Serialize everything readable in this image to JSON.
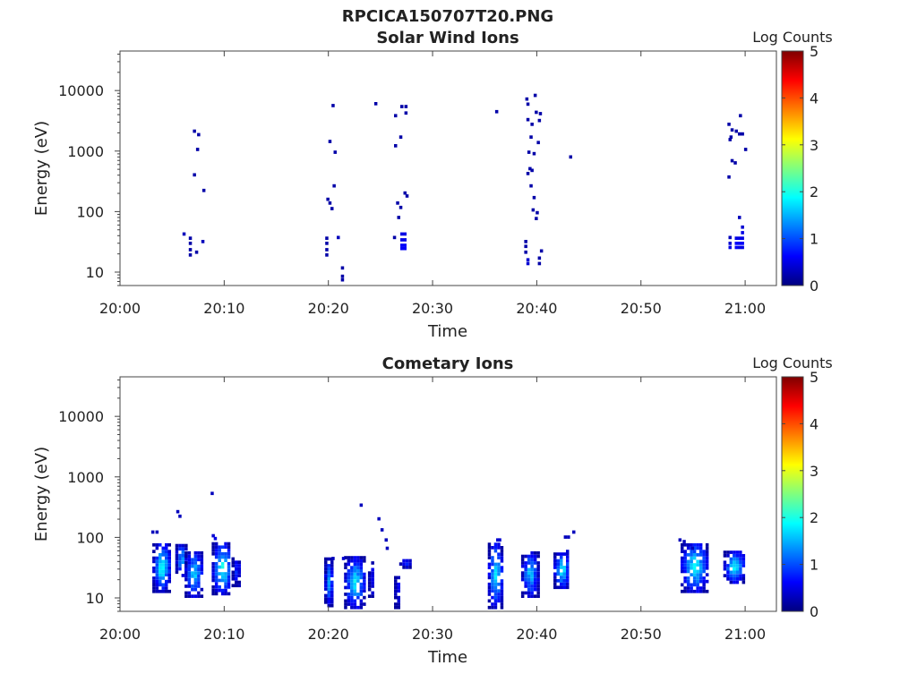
{
  "figure_title": "RPCICA150707T20.PNG",
  "colormap": [
    "#00007f",
    "#0000ff",
    "#007fff",
    "#00ffff",
    "#7fff7f",
    "#ffff00",
    "#ff7f00",
    "#ff0000",
    "#7f0000"
  ],
  "chart_data": [
    {
      "type": "heatmap",
      "title": "Solar Wind Ions",
      "xlabel": "Time",
      "ylabel": "Energy (eV)",
      "x_ticks": [
        "20:00",
        "20:10",
        "20:20",
        "20:30",
        "20:40",
        "20:50",
        "21:00"
      ],
      "y_ticks": [
        "10",
        "100",
        "1000",
        "10000"
      ],
      "y_scale": "log",
      "x_range_minutes": [
        0,
        63
      ],
      "y_range_eV": [
        6,
        45000
      ],
      "colorbar": {
        "label": "Log Counts",
        "ticks": [
          "0",
          "1",
          "2",
          "3",
          "4",
          "5"
        ],
        "range": [
          0,
          5
        ]
      },
      "points": [
        [
          6.0,
          40,
          0.3
        ],
        [
          6.6,
          34,
          0.2
        ],
        [
          6.6,
          28,
          0.2
        ],
        [
          6.6,
          22,
          0.2
        ],
        [
          6.6,
          18,
          0.2
        ],
        [
          7.2,
          20,
          0.2
        ],
        [
          7.8,
          30,
          0.3
        ],
        [
          7.0,
          2000,
          0.2
        ],
        [
          7.4,
          1750,
          0.2
        ],
        [
          7.3,
          1000,
          0.2
        ],
        [
          7.0,
          380,
          0.2
        ],
        [
          7.9,
          210,
          0.2
        ],
        [
          19.7,
          34,
          0.2
        ],
        [
          19.7,
          28,
          0.2
        ],
        [
          19.7,
          22,
          0.2
        ],
        [
          19.7,
          18,
          0.2
        ],
        [
          20.8,
          35,
          0.3
        ],
        [
          21.2,
          11,
          0.2
        ],
        [
          21.2,
          8,
          0.2
        ],
        [
          21.2,
          7,
          0.2
        ],
        [
          20.3,
          5300,
          0.2
        ],
        [
          20.0,
          1350,
          0.2
        ],
        [
          20.5,
          900,
          0.2
        ],
        [
          20.4,
          250,
          0.2
        ],
        [
          19.8,
          150,
          0.2
        ],
        [
          20.0,
          130,
          0.2
        ],
        [
          20.2,
          105,
          0.2
        ],
        [
          24.4,
          5700,
          0.2
        ],
        [
          26.3,
          3600,
          0.2
        ],
        [
          26.9,
          5100,
          0.2
        ],
        [
          27.3,
          5100,
          0.2
        ],
        [
          27.3,
          4000,
          0.2
        ],
        [
          26.8,
          1600,
          0.2
        ],
        [
          26.3,
          1150,
          0.2
        ],
        [
          27.2,
          190,
          0.2
        ],
        [
          27.4,
          170,
          0.2
        ],
        [
          26.5,
          130,
          0.2
        ],
        [
          26.8,
          110,
          0.2
        ],
        [
          26.6,
          75,
          0.2
        ],
        [
          26.2,
          35,
          0.2
        ],
        [
          26.9,
          40,
          0.5
        ],
        [
          26.9,
          32,
          0.5
        ],
        [
          26.9,
          26,
          0.6
        ],
        [
          26.9,
          23,
          0.6
        ],
        [
          27.2,
          40,
          0.5
        ],
        [
          27.2,
          32,
          0.5
        ],
        [
          27.2,
          26,
          0.6
        ],
        [
          27.2,
          23,
          0.6
        ],
        [
          36.0,
          4200,
          0.2
        ],
        [
          38.9,
          6800,
          0.2
        ],
        [
          39.0,
          5600,
          0.2
        ],
        [
          39.7,
          7800,
          0.2
        ],
        [
          39.8,
          4100,
          0.2
        ],
        [
          40.2,
          3900,
          0.2
        ],
        [
          40.1,
          3000,
          0.2
        ],
        [
          39.0,
          3100,
          0.2
        ],
        [
          39.4,
          2600,
          0.2
        ],
        [
          39.3,
          1600,
          0.2
        ],
        [
          40.0,
          1300,
          0.2
        ],
        [
          39.1,
          900,
          0.2
        ],
        [
          39.6,
          850,
          0.2
        ],
        [
          39.2,
          480,
          0.2
        ],
        [
          39.4,
          450,
          0.2
        ],
        [
          39.0,
          400,
          0.2
        ],
        [
          39.3,
          250,
          0.2
        ],
        [
          39.6,
          160,
          0.2
        ],
        [
          39.5,
          100,
          0.2
        ],
        [
          39.9,
          90,
          0.2
        ],
        [
          39.8,
          72,
          0.2
        ],
        [
          43.1,
          750,
          0.2
        ],
        [
          38.8,
          30,
          0.2
        ],
        [
          38.8,
          25,
          0.2
        ],
        [
          38.8,
          20,
          0.2
        ],
        [
          39.0,
          15,
          0.4
        ],
        [
          39.0,
          13,
          0.4
        ],
        [
          40.3,
          21,
          0.2
        ],
        [
          40.1,
          16,
          0.2
        ],
        [
          40.1,
          13,
          0.2
        ],
        [
          58.3,
          2600,
          0.2
        ],
        [
          58.6,
          2100,
          0.2
        ],
        [
          58.5,
          1600,
          0.2
        ],
        [
          59.0,
          2000,
          0.2
        ],
        [
          59.3,
          1800,
          0.2
        ],
        [
          59.6,
          1800,
          0.2
        ],
        [
          59.4,
          3600,
          0.2
        ],
        [
          58.4,
          1450,
          0.2
        ],
        [
          59.9,
          1000,
          0.2
        ],
        [
          58.6,
          650,
          0.2
        ],
        [
          58.9,
          600,
          0.2
        ],
        [
          58.3,
          350,
          0.2
        ],
        [
          59.3,
          75,
          0.3
        ],
        [
          58.4,
          35,
          0.3
        ],
        [
          58.4,
          28,
          0.4
        ],
        [
          58.4,
          24,
          0.5
        ],
        [
          59.0,
          34,
          0.5
        ],
        [
          59.0,
          28,
          0.6
        ],
        [
          59.0,
          24,
          0.6
        ],
        [
          59.3,
          34,
          0.5
        ],
        [
          59.3,
          28,
          0.6
        ],
        [
          59.3,
          24,
          0.5
        ],
        [
          59.6,
          52,
          0.4
        ],
        [
          59.6,
          42,
          0.5
        ],
        [
          59.6,
          34,
          0.5
        ],
        [
          59.6,
          28,
          0.6
        ],
        [
          59.6,
          24,
          0.5
        ]
      ]
    },
    {
      "type": "heatmap",
      "title": "Cometary Ions",
      "xlabel": "Time",
      "ylabel": "Energy (eV)",
      "x_ticks": [
        "20:00",
        "20:10",
        "20:20",
        "20:30",
        "20:40",
        "20:50",
        "21:00"
      ],
      "y_ticks": [
        "10",
        "100",
        "1000",
        "10000"
      ],
      "y_scale": "log",
      "x_range_minutes": [
        0,
        63
      ],
      "y_range_eV": [
        6,
        45000
      ],
      "colorbar": {
        "label": "Log Counts",
        "ticks": [
          "0",
          "1",
          "2",
          "3",
          "4",
          "5"
        ],
        "range": [
          0,
          5
        ]
      },
      "clusters": [
        {
          "t0": 3.1,
          "t1": 4.7,
          "e0": 12,
          "e1": 75,
          "peak": 2.1
        },
        {
          "t0": 5.3,
          "t1": 6.3,
          "e0": 22,
          "e1": 75,
          "peak": 1.6
        },
        {
          "t0": 6.2,
          "t1": 7.8,
          "e0": 10,
          "e1": 55,
          "peak": 1.8
        },
        {
          "t0": 8.8,
          "t1": 10.6,
          "e0": 11,
          "e1": 75,
          "peak": 2.1
        },
        {
          "t0": 10.7,
          "t1": 11.5,
          "e0": 15,
          "e1": 45,
          "peak": 0.9
        },
        {
          "t0": 19.6,
          "t1": 20.3,
          "e0": 7,
          "e1": 42,
          "peak": 1.6
        },
        {
          "t0": 21.5,
          "t1": 23.4,
          "e0": 6.5,
          "e1": 45,
          "peak": 1.9
        },
        {
          "t0": 23.8,
          "t1": 24.3,
          "e0": 10,
          "e1": 38,
          "peak": 0.7
        },
        {
          "t0": 26.3,
          "t1": 26.8,
          "e0": 6.5,
          "e1": 25,
          "peak": 0.6
        },
        {
          "t0": 26.8,
          "t1": 27.9,
          "e0": 30,
          "e1": 42,
          "peak": 1.1
        },
        {
          "t0": 35.3,
          "t1": 36.6,
          "e0": 6.5,
          "e1": 80,
          "peak": 1.9
        },
        {
          "t0": 38.5,
          "t1": 40.0,
          "e0": 10,
          "e1": 55,
          "peak": 1.7
        },
        {
          "t0": 41.6,
          "t1": 43.0,
          "e0": 14,
          "e1": 55,
          "peak": 2.0
        },
        {
          "t0": 53.8,
          "t1": 56.3,
          "e0": 12,
          "e1": 80,
          "peak": 2.0
        },
        {
          "t0": 57.9,
          "t1": 59.9,
          "e0": 17,
          "e1": 55,
          "peak": 2.0
        }
      ],
      "points": [
        [
          3.0,
          115,
          0.3
        ],
        [
          3.4,
          115,
          0.3
        ],
        [
          5.4,
          250,
          0.3
        ],
        [
          5.6,
          210,
          0.3
        ],
        [
          8.7,
          500,
          0.3
        ],
        [
          8.8,
          100,
          0.4
        ],
        [
          9.0,
          90,
          0.5
        ],
        [
          23.0,
          320,
          0.3
        ],
        [
          24.7,
          190,
          0.3
        ],
        [
          25.0,
          125,
          0.3
        ],
        [
          25.4,
          85,
          0.3
        ],
        [
          25.5,
          62,
          0.3
        ],
        [
          36.1,
          85,
          0.4
        ],
        [
          36.3,
          85,
          0.4
        ],
        [
          42.6,
          95,
          0.3
        ],
        [
          42.9,
          95,
          0.3
        ],
        [
          43.4,
          115,
          0.3
        ],
        [
          42.8,
          55,
          0.4
        ],
        [
          53.6,
          85,
          0.3
        ],
        [
          54.0,
          80,
          0.3
        ],
        [
          54.4,
          70,
          0.3
        ],
        [
          54.8,
          62,
          0.3
        ],
        [
          21.3,
          42,
          0.4
        ],
        [
          20.3,
          42,
          0.3
        ]
      ]
    }
  ]
}
